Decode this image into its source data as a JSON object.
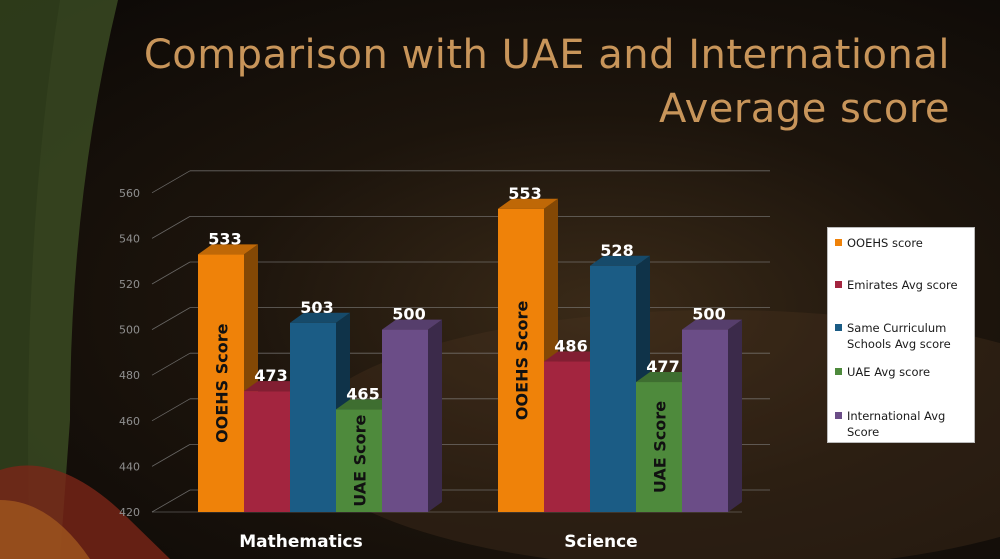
{
  "title": {
    "line1": "Comparison with UAE and International",
    "line2": "Average  score"
  },
  "colors": {
    "ooehs": "#ef8209",
    "emirates": "#a3253f",
    "same_curriculum": "#1b5c85",
    "uae": "#4e8a3c",
    "international": "#6b4d87"
  },
  "chart_data": {
    "type": "bar",
    "categories": [
      "Mathematics",
      "Science"
    ],
    "series": [
      {
        "name": "OOEHS score",
        "values": [
          533,
          553
        ],
        "color": "#ef8209",
        "bar_label": "OOEHS Score"
      },
      {
        "name": "Emirates Avg score",
        "values": [
          473,
          486
        ],
        "color": "#a3253f",
        "bar_label": ""
      },
      {
        "name": "Same Curriculum Schools Avg score",
        "values": [
          503,
          528
        ],
        "color": "#1b5c85",
        "bar_label": ""
      },
      {
        "name": "UAE Avg score",
        "values": [
          465,
          477
        ],
        "color": "#4e8a3c",
        "bar_label": "UAE Score"
      },
      {
        "name": "International Avg Score",
        "values": [
          500,
          500
        ],
        "color": "#6b4d87",
        "bar_label": ""
      }
    ],
    "y_ticks": [
      "420",
      "440",
      "460",
      "480",
      "500",
      "520",
      "540",
      "560"
    ],
    "ylim": [
      420,
      560
    ],
    "grid": true,
    "legend_position": "right",
    "projection": "3d"
  }
}
